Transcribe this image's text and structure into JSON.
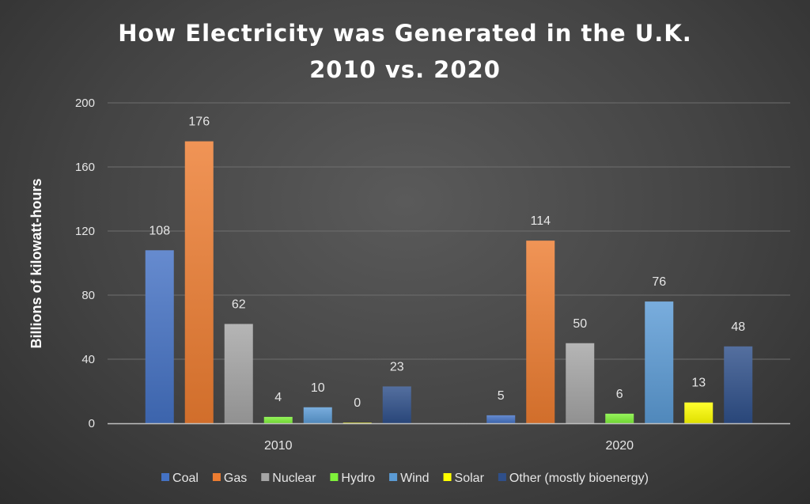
{
  "chart_data": {
    "type": "bar",
    "title_line1": "How Electricity was Generated in the U.K.",
    "title_line2": "2010 vs. 2020",
    "xlabel": "",
    "ylabel": "Billions of kilowatt-hours",
    "ylim": [
      0,
      200
    ],
    "yticks": [
      "0",
      "40",
      "80",
      "120",
      "160",
      "200"
    ],
    "grid": true,
    "legend_position": "bottom",
    "categories": [
      "2010",
      "2020"
    ],
    "series": [
      {
        "name": "Coal",
        "values": [
          108,
          5
        ],
        "labels": [
          "108",
          "5"
        ],
        "color": "#4472c4"
      },
      {
        "name": "Gas",
        "values": [
          176,
          114
        ],
        "labels": [
          "176",
          "114"
        ],
        "color": "#ed7d31"
      },
      {
        "name": "Nuclear",
        "values": [
          62,
          50
        ],
        "labels": [
          "62",
          "50"
        ],
        "color": "#a5a5a5"
      },
      {
        "name": "Hydro",
        "values": [
          4,
          6
        ],
        "labels": [
          "4",
          "6"
        ],
        "color": "#7ff23a"
      },
      {
        "name": "Wind",
        "values": [
          10,
          76
        ],
        "labels": [
          "10",
          "76"
        ],
        "color": "#5b9bd5"
      },
      {
        "name": "Solar",
        "values": [
          0.4,
          13
        ],
        "labels": [
          "0",
          "13"
        ],
        "color": "#ffff00"
      },
      {
        "name": "Other (mostly bioenergy)",
        "values": [
          23,
          48
        ],
        "labels": [
          "23",
          "48"
        ],
        "color": "#2f4f8a"
      }
    ]
  }
}
